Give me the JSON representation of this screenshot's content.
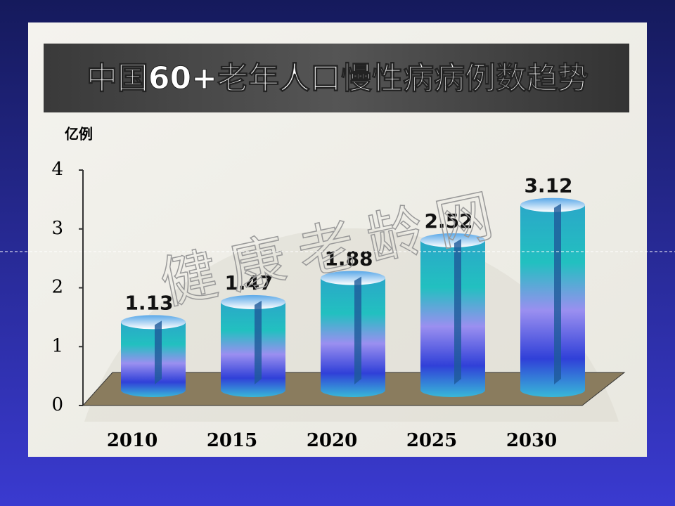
{
  "chart_data": {
    "type": "bar",
    "title": "中国60+老年人口慢性病病例数趋势",
    "y_label": "亿例",
    "watermark": "健康老龄网",
    "categories": [
      "2010",
      "2015",
      "2020",
      "2025",
      "2030"
    ],
    "values": [
      1.13,
      1.47,
      1.88,
      2.52,
      3.12
    ],
    "ylim": [
      0,
      4
    ],
    "yticks": [
      0,
      1,
      2,
      3,
      4
    ],
    "grid": false
  }
}
